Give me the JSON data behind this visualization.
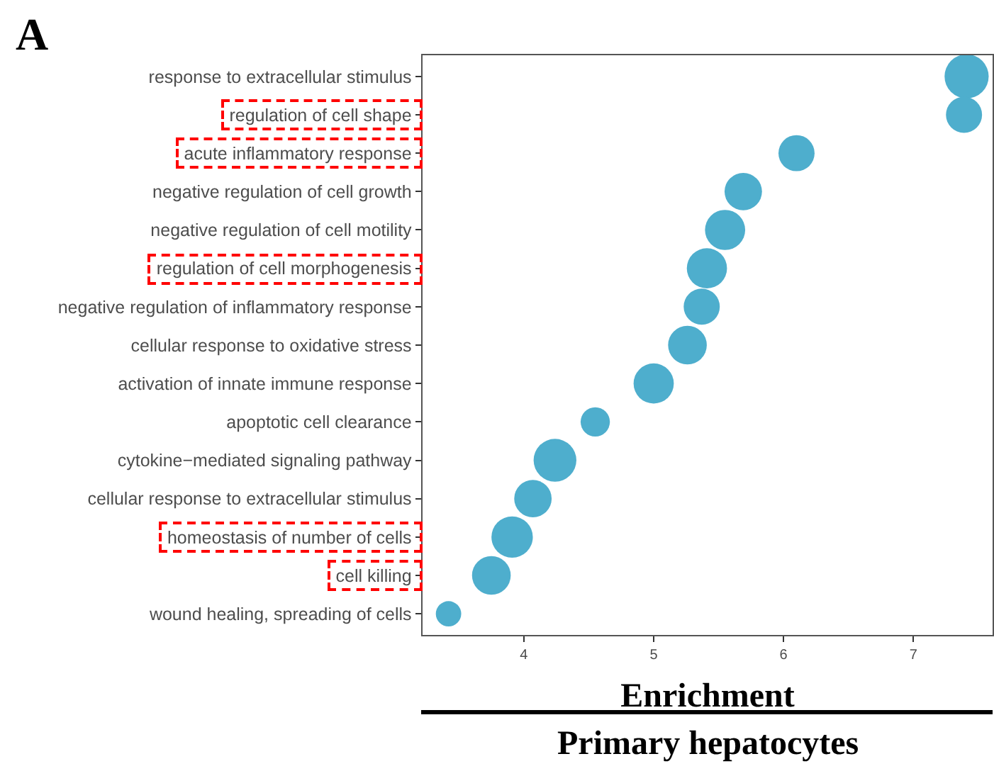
{
  "chart_data": {
    "type": "bubble",
    "categories": [
      "response to extracellular stimulus",
      "regulation of cell shape",
      "acute inflammatory response",
      "negative regulation of cell growth",
      "negative regulation of cell motility",
      "regulation of cell morphogenesis",
      "negative regulation of inflammatory response",
      "cellular response to oxidative stress",
      "activation of innate immune response",
      "apoptotic cell clearance",
      "cytokine−mediated signaling pathway",
      "cellular response to extracellular stimulus",
      "homeostasis of number of cells",
      "cell killing",
      "wound healing, spreading of cells"
    ],
    "values": [
      7.41,
      7.39,
      6.1,
      5.69,
      5.55,
      5.41,
      5.37,
      5.26,
      5.0,
      4.55,
      4.24,
      4.07,
      3.91,
      3.75,
      3.42
    ],
    "sizes": [
      1,
      0.67,
      0.67,
      0.72,
      0.83,
      0.83,
      0.67,
      0.77,
      0.83,
      0.44,
      0.94,
      0.72,
      0.88,
      0.77,
      0.33
    ],
    "color": "#4eaecd",
    "orientation": "horizontal",
    "xlim": [
      3.22,
      7.61
    ],
    "xticks": [
      4,
      5,
      6,
      7
    ],
    "xlabel": "Enrichment",
    "annotations": [
      "A",
      "Primary hepatocytes"
    ],
    "grid": false,
    "legend": false
  }
}
